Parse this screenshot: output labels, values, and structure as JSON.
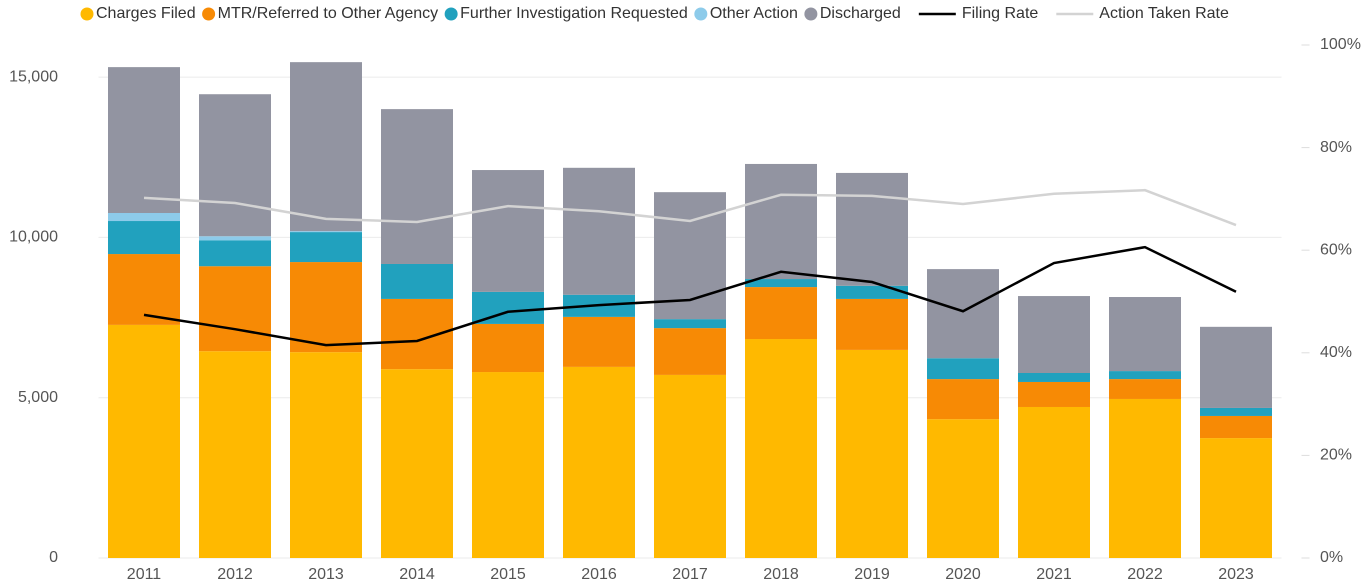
{
  "chart_data": {
    "type": "bar",
    "stacked": true,
    "categories": [
      "2011",
      "2012",
      "2013",
      "2014",
      "2015",
      "2016",
      "2017",
      "2018",
      "2019",
      "2020",
      "2021",
      "2022",
      "2023"
    ],
    "series": [
      {
        "name": "Charges Filed",
        "color": "#FFB900",
        "values": [
          7270,
          6450,
          6420,
          5890,
          5800,
          5960,
          5710,
          6830,
          6490,
          4330,
          4710,
          4960,
          3740
        ]
      },
      {
        "name": "MTR/Referred to Other Agency",
        "color": "#F78A05",
        "values": [
          2210,
          2650,
          2810,
          2190,
          1500,
          1560,
          1460,
          1620,
          1590,
          1250,
          780,
          620,
          690
        ]
      },
      {
        "name": "Further Investigation Requested",
        "color": "#21A1BE",
        "values": [
          1030,
          810,
          935,
          1090,
          1000,
          690,
          280,
          250,
          410,
          650,
          280,
          250,
          250
        ]
      },
      {
        "name": "Other Action",
        "color": "#8DCBEA",
        "values": [
          250,
          125,
          30,
          0,
          0,
          0,
          0,
          0,
          0,
          0,
          0,
          0,
          0
        ]
      },
      {
        "name": "Discharged",
        "color": "#9294A1",
        "values": [
          4550,
          4430,
          5270,
          4830,
          3800,
          3960,
          3960,
          3590,
          3520,
          2780,
          2400,
          2310,
          2530
        ]
      },
      {
        "name": "Filing Rate",
        "color": "#000000",
        "axis": "y2",
        "values": [
          47.4,
          44.6,
          41.5,
          42.3,
          48.0,
          49.3,
          50.3,
          55.8,
          53.8,
          48.1,
          57.5,
          60.6,
          51.9
        ]
      },
      {
        "name": "Action Taken Rate",
        "color": "#D3D3D3",
        "axis": "y2",
        "values": [
          70.2,
          69.2,
          66.1,
          65.5,
          68.6,
          67.6,
          65.7,
          70.8,
          70.6,
          69.0,
          71.0,
          71.7,
          64.9
        ]
      }
    ],
    "ylim": [
      0,
      16000
    ],
    "yticks": [
      0,
      {
        "value": 5000,
        "label": "5,000"
      },
      {
        "value": 10000,
        "label": "10,000"
      },
      {
        "value": 15000,
        "label": "15,000"
      }
    ],
    "y2lim": [
      0,
      100
    ],
    "y2ticks": [
      {
        "value": 0,
        "label": "0%"
      },
      {
        "value": 20,
        "label": "20%"
      },
      {
        "value": 40,
        "label": "40%"
      },
      {
        "value": 60,
        "label": "60%"
      },
      {
        "value": 80,
        "label": "80%"
      },
      {
        "value": 100,
        "label": "100%"
      }
    ],
    "grid": true,
    "legend": "top"
  }
}
